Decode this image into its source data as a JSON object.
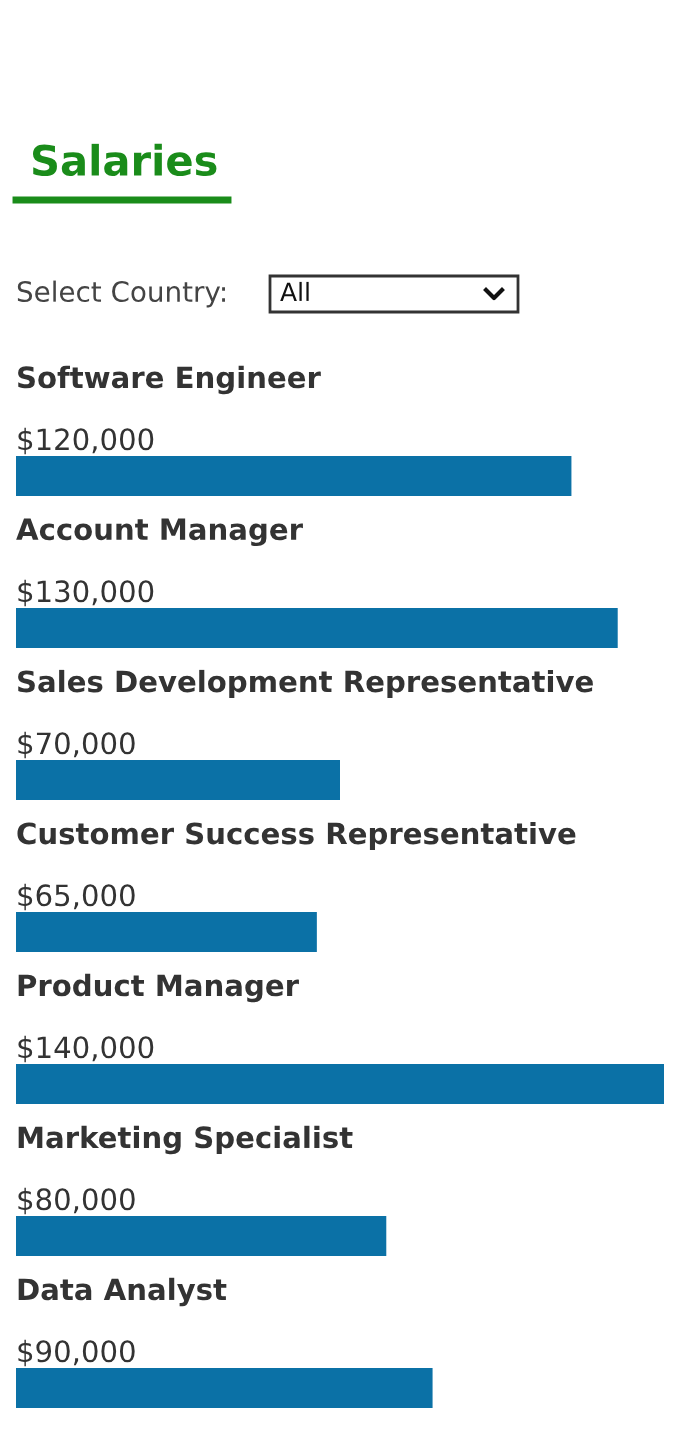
{
  "chart_data": {
    "type": "bar",
    "orientation": "horizontal",
    "title": "Salaries",
    "annotations": [
      "Select Country:",
      "All"
    ],
    "categories": [
      "Software Engineer",
      "Account Manager",
      "Sales Development Representative",
      "Customer Success Representative",
      "Product Manager",
      "Marketing Specialist",
      "Data Analyst"
    ],
    "values": [
      120000,
      130000,
      70000,
      65000,
      140000,
      80000,
      90000
    ],
    "value_labels": [
      "$120,000",
      "$130,000",
      "$70,000",
      "$65,000",
      "$140,000",
      "$80,000",
      "$90,000"
    ],
    "color": "#0b71a6"
  }
}
